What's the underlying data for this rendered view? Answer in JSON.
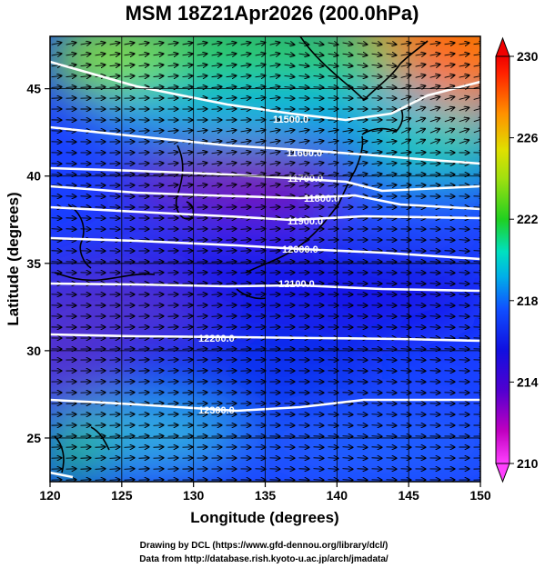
{
  "title": "MSM 18Z21Apr2026 (200.0hPa)",
  "xlabel": "Longitude (degrees)",
  "ylabel": "Latitude  (degrees)",
  "x_ticks": [
    "120",
    "125",
    "130",
    "135",
    "140",
    "145",
    "150"
  ],
  "y_ticks": [
    "25",
    "30",
    "35",
    "40",
    "45"
  ],
  "colorbar": {
    "min": 210,
    "max": 230,
    "ticks": [
      "210",
      "214",
      "218",
      "222",
      "226",
      "230"
    ],
    "colors": {
      "magenta": "#c000c0",
      "blue": "#1010e0",
      "cyan": "#00d0e0",
      "green": "#20d020",
      "yellow": "#e0e000",
      "orange": "#ff9000",
      "red": "#ff2000"
    }
  },
  "contours": [
    {
      "label": "11500.0",
      "value": 11500
    },
    {
      "label": "11600.0",
      "value": 11600
    },
    {
      "label": "11700.0",
      "value": 11700
    },
    {
      "label": "11800.0",
      "value": 11800
    },
    {
      "label": "11900.0",
      "value": 11900
    },
    {
      "label": "12000.0",
      "value": 12000
    },
    {
      "label": "12100.0",
      "value": 12100
    },
    {
      "label": "12200.0",
      "value": 12200
    },
    {
      "label": "12300.0",
      "value": 12300
    }
  ],
  "credits": [
    "Drawing by DCL (https://www.gfd-dennou.org/library/dcl/)",
    "Data from http://database.rish.kyoto-u.ac.jp/arch/jmadata/"
  ],
  "map": {
    "lon_range": [
      120,
      150
    ],
    "lat_range": [
      22.5,
      48
    ],
    "field": "temperature",
    "vectors": "wind",
    "icons": [
      "coastline",
      "wind-vector",
      "colorbar-up-arrow",
      "colorbar-down-arrow"
    ]
  }
}
